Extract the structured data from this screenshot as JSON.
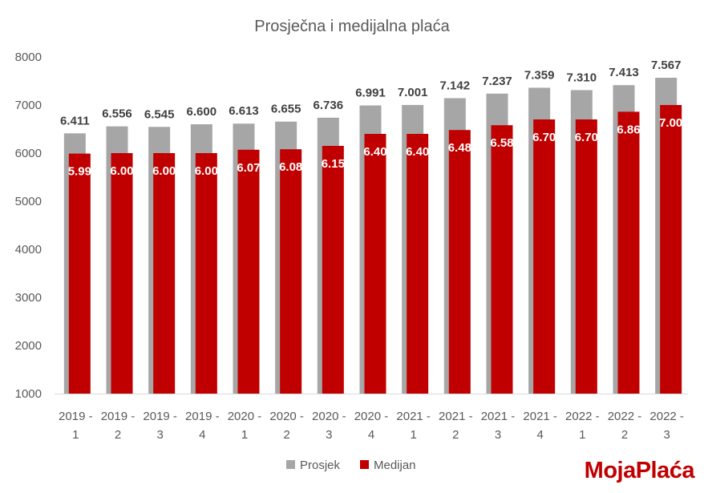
{
  "chart_data": {
    "type": "bar",
    "title": "Prosječna i medijalna plaća",
    "xlabel": "",
    "ylabel": "",
    "ylim": [
      1000,
      8000
    ],
    "yticks": [
      1000,
      2000,
      3000,
      4000,
      5000,
      6000,
      7000,
      8000
    ],
    "grid": false,
    "legend_position": "bottom",
    "categories": [
      [
        "2019 -",
        "1"
      ],
      [
        "2019 -",
        "2"
      ],
      [
        "2019 -",
        "3"
      ],
      [
        "2019 -",
        "4"
      ],
      [
        "2020 -",
        "1"
      ],
      [
        "2020 -",
        "2"
      ],
      [
        "2020 -",
        "3"
      ],
      [
        "2020 -",
        "4"
      ],
      [
        "2021 -",
        "1"
      ],
      [
        "2021 -",
        "2"
      ],
      [
        "2021 -",
        "3"
      ],
      [
        "2021 -",
        "4"
      ],
      [
        "2022 -",
        "1"
      ],
      [
        "2022 -",
        "2"
      ],
      [
        "2022 -",
        "3"
      ]
    ],
    "series": [
      {
        "name": "Prosjek",
        "color": "#a6a6a6",
        "values": [
          6411,
          6556,
          6545,
          6600,
          6613,
          6655,
          6736,
          6991,
          7001,
          7142,
          7237,
          7359,
          7310,
          7413,
          7567
        ],
        "labels": [
          "6.411",
          "6.556",
          "6.545",
          "6.600",
          "6.613",
          "6.655",
          "6.736",
          "6.991",
          "7.001",
          "7.142",
          "7.237",
          "7.359",
          "7.310",
          "7.413",
          "7.567"
        ]
      },
      {
        "name": "Medijan",
        "color": "#c00000",
        "values": [
          5990,
          6000,
          6000,
          6000,
          6070,
          6080,
          6150,
          6400,
          6400,
          6480,
          6580,
          6700,
          6700,
          6860,
          7000
        ],
        "labels": [
          "5.99",
          "6.00",
          "6.00",
          "6.00",
          "6.07",
          "6.08",
          "6.15",
          "6.40",
          "6.40",
          "6.48",
          "6.58",
          "6.70",
          "6.70",
          "6.86",
          "7.00"
        ]
      }
    ]
  },
  "branding": {
    "logo_text": "MojaPlaća"
  }
}
